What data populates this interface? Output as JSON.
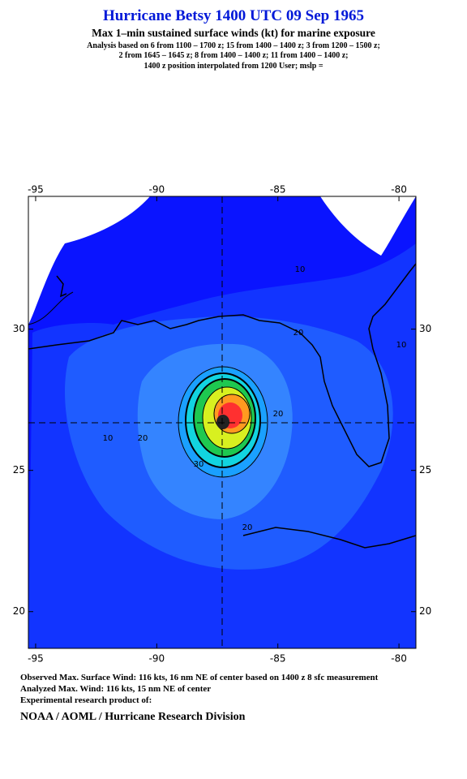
{
  "header": {
    "title": "Hurricane Betsy 1400 UTC 09 Sep 1965",
    "subtitle": "Max 1–min sustained surface winds (kt) for marine exposure",
    "analysis": [
      "Analysis based on  6 from 1100 – 1700 z;  15 from 1400 – 1400 z;  3 from 1200 – 1500 z;",
      "2 from 1645 – 1645 z;  8 from 1400 – 1400 z;  11 from 1400 – 1400 z;",
      "1400 z position interpolated from 1200 User; mslp ="
    ]
  },
  "map": {
    "xlim": [
      -95.3,
      -79.3
    ],
    "ylim": [
      18.7,
      34.7
    ],
    "xticks": [
      -95,
      -90,
      -85,
      -80
    ],
    "yticks": [
      20,
      25,
      30
    ],
    "contour_labels": [
      10,
      10,
      10,
      20,
      20,
      20,
      20,
      30
    ]
  },
  "footer": {
    "lines": [
      "Observed Max. Surface Wind: 116 kts, 16 nm NE of center based on 1400 z 8 sfc measurement",
      "Analyzed Max. Wind: 116 kts, 15 nm NE of center",
      "Experimental research product of:"
    ],
    "credit": "NOAA / AOML / Hurricane Research Division"
  }
}
